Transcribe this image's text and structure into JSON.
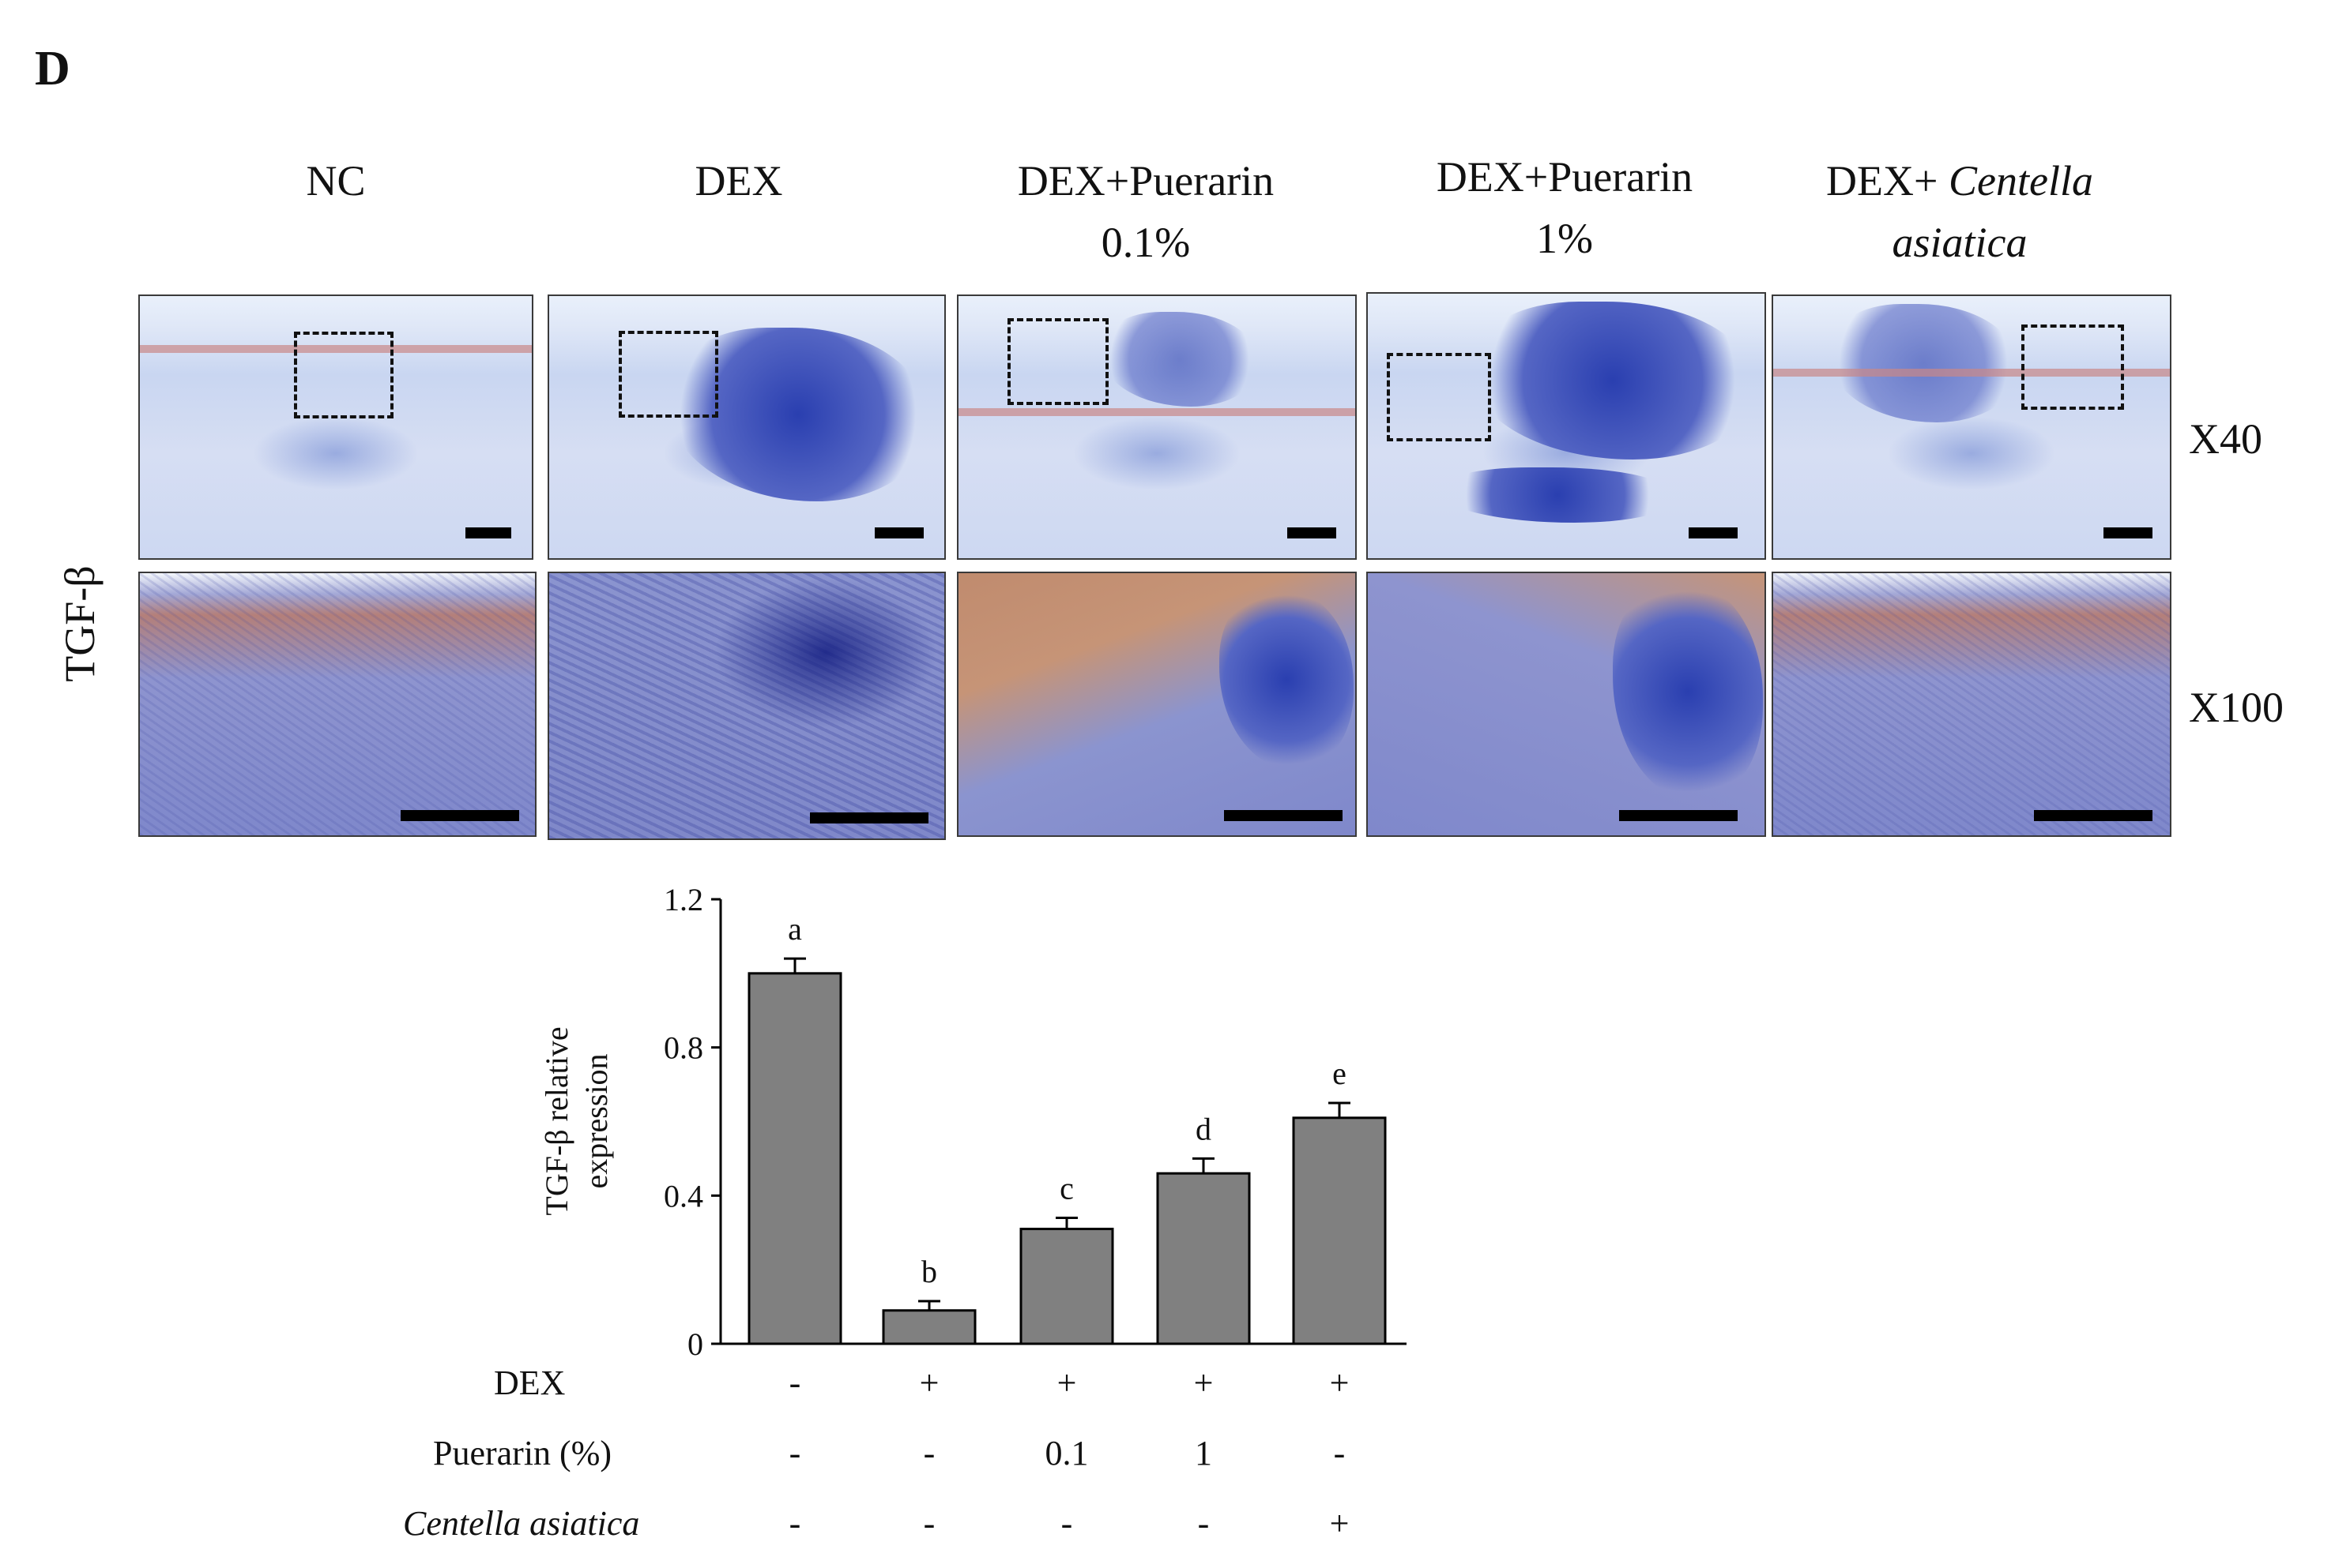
{
  "figure": {
    "panel_letter": "D",
    "stain_label": "TGF-β",
    "columns": [
      {
        "line1": "NC",
        "line2": "",
        "line2_italic": false
      },
      {
        "line1": "DEX",
        "line2": "",
        "line2_italic": false
      },
      {
        "line1": "DEX+Puerarin",
        "line2": "0.1%",
        "line2_italic": false
      },
      {
        "line1": "DEX+Puerarin",
        "line2": "1%",
        "line2_italic": false
      },
      {
        "line1_prefix": "DEX+ ",
        "line1_italic": "Centella",
        "line2": "asiatica",
        "line2_italic": true
      }
    ],
    "magnification": {
      "low": "X40",
      "high": "X100"
    }
  },
  "chart_data": {
    "type": "bar",
    "categories": [
      "1",
      "2",
      "3",
      "4",
      "5"
    ],
    "values": [
      1.0,
      0.09,
      0.31,
      0.46,
      0.61
    ],
    "errors": [
      0.04,
      0.025,
      0.03,
      0.04,
      0.04
    ],
    "letters": [
      "a",
      "b",
      "c",
      "d",
      "e"
    ],
    "ylabel_line1": "TGF-β relative",
    "ylabel_line2": "expression",
    "ylim": [
      0,
      1.2
    ],
    "yticks": [
      "0",
      "0.4",
      "0.8",
      "1.2"
    ],
    "bar_color": "#808080",
    "treatment_table": [
      {
        "label": "DEX",
        "italic": false,
        "values": [
          "-",
          "+",
          "+",
          "+",
          "+"
        ]
      },
      {
        "label": "Puerarin (%)",
        "italic": false,
        "values": [
          "-",
          "-",
          "0.1",
          "1",
          "-"
        ]
      },
      {
        "label": "Centella asiatica",
        "italic": true,
        "values": [
          "-",
          "-",
          "-",
          "-",
          "+"
        ]
      }
    ]
  }
}
